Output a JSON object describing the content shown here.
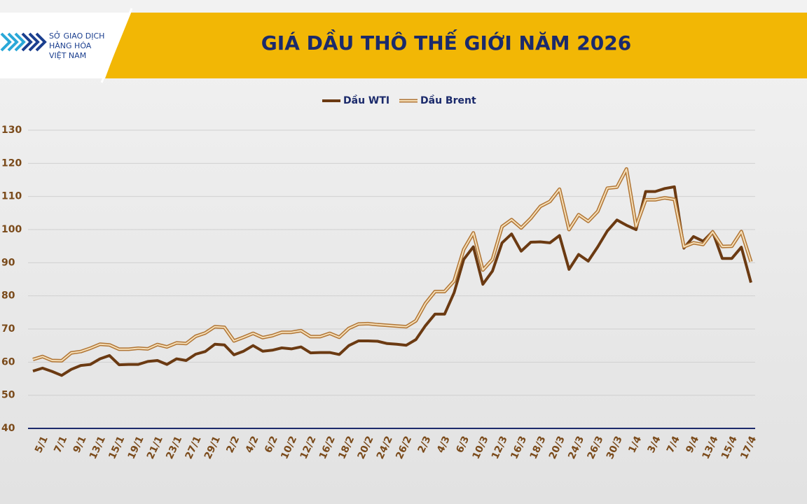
{
  "logo": {
    "lines": [
      "SỞ GIAO DỊCH",
      "HÀNG HÓA",
      "VIỆT NAM"
    ]
  },
  "chart_data": {
    "type": "line",
    "title": "GIÁ DẦU THÔ THẾ GIỚI NĂM 2026",
    "categories": [
      null,
      "5/1",
      null,
      "7/1",
      null,
      "9/1",
      null,
      "13/1",
      null,
      "15/1",
      null,
      "19/1",
      null,
      "21/1",
      null,
      "23/1",
      null,
      "27/1",
      null,
      "29/1",
      null,
      "2/2",
      null,
      "4/2",
      null,
      "6/2",
      null,
      "10/2",
      null,
      "12/2",
      null,
      "16/2",
      null,
      "18/2",
      null,
      "20/2",
      null,
      "24/2",
      null,
      "26/2",
      null,
      "2/3",
      null,
      "4/3",
      null,
      "6/3",
      null,
      "10/3",
      null,
      "12/3",
      null,
      "16/3",
      null,
      "18/3",
      null,
      "20/3",
      null,
      "24/3",
      null,
      "26/3",
      null,
      "30/3",
      null,
      "1/4",
      null,
      "3/4",
      null,
      "7/4",
      null,
      "9/4",
      null,
      "13/4",
      null,
      "15/4",
      null,
      "17/4"
    ],
    "series": [
      {
        "name": "Dầu WTI",
        "color": "#6b3a12",
        "values": [
          57.3,
          58.2,
          57.2,
          56.0,
          57.8,
          59.0,
          59.3,
          61.0,
          62.0,
          59.2,
          59.3,
          59.3,
          60.2,
          60.5,
          59.3,
          61.0,
          60.5,
          62.4,
          63.2,
          65.4,
          65.2,
          62.2,
          63.3,
          65.0,
          63.3,
          63.6,
          64.3,
          64.0,
          64.6,
          62.8,
          62.9,
          62.9,
          62.3,
          65.0,
          66.4,
          66.4,
          66.3,
          65.6,
          65.4,
          65.1,
          66.8,
          71.0,
          74.5,
          74.5,
          81.0,
          91.0,
          94.8,
          83.5,
          87.5,
          96.0,
          98.7,
          93.5,
          96.2,
          96.3,
          96.0,
          98.2,
          88.0,
          92.5,
          90.5,
          94.8,
          99.6,
          102.9,
          101.3,
          100.0,
          111.5,
          111.5,
          112.4,
          112.9,
          94.4,
          97.9,
          96.5,
          99.4,
          91.3,
          91.3,
          94.7,
          84.0
        ]
      },
      {
        "name": "Dầu Brent",
        "color": "#b07535",
        "values": [
          60.8,
          61.7,
          60.5,
          60.4,
          62.8,
          63.2,
          64.2,
          65.4,
          65.2,
          63.9,
          63.9,
          64.2,
          64.0,
          65.3,
          64.6,
          65.8,
          65.6,
          67.8,
          68.8,
          70.7,
          70.5,
          66.4,
          67.5,
          68.7,
          67.4,
          68.0,
          69.0,
          69.0,
          69.5,
          67.7,
          67.7,
          68.7,
          67.5,
          70.2,
          71.5,
          71.6,
          71.3,
          71.1,
          70.9,
          70.7,
          72.5,
          77.7,
          81.3,
          81.3,
          84.5,
          94.0,
          99.0,
          87.8,
          91.0,
          100.9,
          103.0,
          100.5,
          103.4,
          107.0,
          108.5,
          112.2,
          100.0,
          104.5,
          102.5,
          105.5,
          112.5,
          112.8,
          118.3,
          101.0,
          109.0,
          109.0,
          109.6,
          109.1,
          94.8,
          96.0,
          95.5,
          99.3,
          94.9,
          95.0,
          99.4,
          90.3
        ]
      }
    ],
    "ylim": [
      40,
      130
    ],
    "yticks": [
      40,
      50,
      60,
      70,
      80,
      90,
      100,
      110,
      120,
      130
    ],
    "grid": true,
    "legend": "top"
  }
}
